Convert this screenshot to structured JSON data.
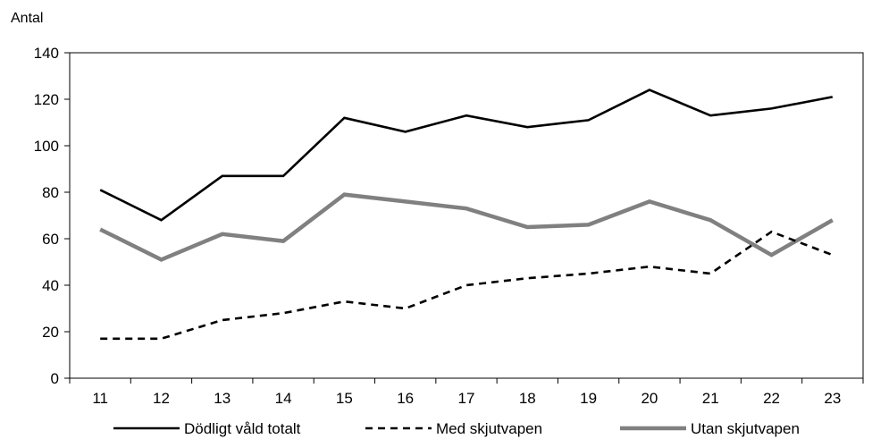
{
  "chart_data": {
    "type": "line",
    "title": "",
    "xlabel": "",
    "ylabel": "Antal",
    "categories": [
      "11",
      "12",
      "13",
      "14",
      "15",
      "16",
      "17",
      "18",
      "19",
      "20",
      "21",
      "22",
      "23"
    ],
    "ylim": [
      0,
      140
    ],
    "yticks": [
      0,
      20,
      40,
      60,
      80,
      100,
      120,
      140
    ],
    "grid": false,
    "legend_position": "bottom",
    "series": [
      {
        "name": "Dödligt våld totalt",
        "style": "solid",
        "color": "#000000",
        "values": [
          81,
          68,
          87,
          87,
          112,
          106,
          113,
          108,
          111,
          124,
          113,
          116,
          121
        ]
      },
      {
        "name": "Med skjutvapen",
        "style": "dashed",
        "color": "#000000",
        "values": [
          17,
          17,
          25,
          28,
          33,
          30,
          40,
          43,
          45,
          48,
          45,
          63,
          53
        ]
      },
      {
        "name": "Utan skjutvapen",
        "style": "thick",
        "color": "#808080",
        "values": [
          64,
          51,
          62,
          59,
          79,
          76,
          73,
          65,
          66,
          76,
          68,
          53,
          68
        ]
      }
    ]
  }
}
